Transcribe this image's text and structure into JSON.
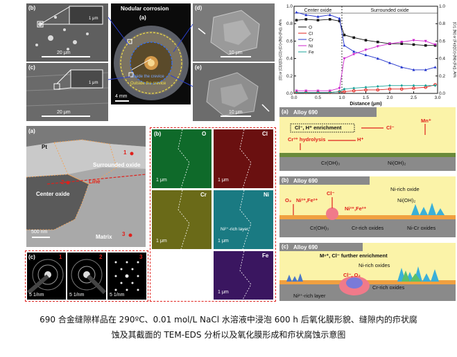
{
  "top_row": {
    "b_label": "(b)",
    "b_scale": "20 μm",
    "b_inset_scale": "1 μm",
    "c_label": "(c)",
    "c_scale": "20 μm",
    "c_inset_scale": "1 μm",
    "a_label": "(a)",
    "a_title": "Nodular corrosion",
    "a_inside": "Inside the crevice",
    "a_outside": "Outside the crevice",
    "a_scale": "4 mm",
    "d_label": "(d)",
    "d_scale": "10 μm",
    "e_label": "(e)",
    "e_scale": "10 μm"
  },
  "profile_chart": {
    "region_left": "Center oxide",
    "region_right": "Surrounded oxide",
    "xlabel": "Distance (μm)",
    "ylabel_left": "[O] or [Cl]/([O]+[Cl]+[Cr]+[Ni]+[Fe]), At%",
    "ylabel_right": "[Cr], [Ni] or [Fe]/([Cr]+[Ni]+[Fe]), At%",
    "x_ticks": [
      "0.0",
      "0.5",
      "1.0",
      "1.5",
      "2.0",
      "2.5",
      "3.0"
    ],
    "y_ticks_left": [
      "0.0",
      "0.2",
      "0.4",
      "0.6",
      "0.8",
      "1.0"
    ],
    "y_ticks_right": [
      "0.0",
      "0.2",
      "0.4",
      "0.6",
      "0.8",
      "1.0"
    ],
    "legend": [
      "O",
      "Cl",
      "Cr",
      "Ni",
      "Fe"
    ],
    "colors": {
      "O": "#111111",
      "Cl": "#e0201b",
      "Cr": "#2233cc",
      "Ni": "#cc22cc",
      "Fe": "#1aa39a"
    }
  },
  "chart_data": {
    "type": "line",
    "xlabel": "Distance (μm)",
    "ylabel": "[O] or [Cl]/([O]+[Cl]+[Cr]+[Ni]+[Fe]), At%",
    "xlim": [
      0,
      3
    ],
    "ylim": [
      0,
      1
    ],
    "x": [
      0.05,
      0.25,
      0.5,
      0.75,
      0.95,
      1.05,
      1.25,
      1.5,
      1.75,
      2.0,
      2.25,
      2.5,
      2.75,
      2.95
    ],
    "series": [
      {
        "name": "O",
        "values": [
          0.84,
          0.85,
          0.84,
          0.85,
          0.83,
          0.67,
          0.64,
          0.61,
          0.59,
          0.57,
          0.57,
          0.56,
          0.55,
          0.55
        ]
      },
      {
        "name": "Cl",
        "values": [
          0.01,
          0.01,
          0.01,
          0.01,
          0.02,
          0.02,
          0.03,
          0.04,
          0.04,
          0.05,
          0.05,
          0.06,
          0.07,
          0.1
        ]
      },
      {
        "name": "Cr",
        "values": [
          0.93,
          0.9,
          0.88,
          0.9,
          0.86,
          0.55,
          0.48,
          0.44,
          0.4,
          0.35,
          0.3,
          0.27,
          0.27,
          0.3
        ]
      },
      {
        "name": "Ni",
        "values": [
          0.03,
          0.03,
          0.03,
          0.03,
          0.06,
          0.4,
          0.45,
          0.5,
          0.54,
          0.57,
          0.59,
          0.61,
          0.6,
          0.56
        ]
      },
      {
        "name": "Fe",
        "values": [
          0.01,
          0.01,
          0.01,
          0.01,
          0.02,
          0.05,
          0.06,
          0.07,
          0.08,
          0.09,
          0.09,
          0.09,
          0.09,
          0.09
        ]
      }
    ]
  },
  "tem": {
    "a_label": "(a)",
    "pt": "Pt",
    "surrounded": "Surrounded oxide",
    "line": "Line",
    "center": "Center oxide",
    "matrix": "Matrix",
    "scale": "500 nm",
    "m1": "1",
    "m2": "2",
    "m3": "3"
  },
  "eds": {
    "b_label": "(b)",
    "O": "O",
    "Cl": "Cl",
    "Cr": "Cr",
    "Ni": "Ni",
    "Fe": "Fe",
    "ni_layer": "Ni²⁺-rich layer",
    "scale": "1 μm",
    "colors": {
      "O": "#0f6a2a",
      "Cl": "#6a1010",
      "Cr": "#6a6a18",
      "Ni": "#1a7a82",
      "Fe": "#3a1660"
    }
  },
  "saed": {
    "c_label": "(c)",
    "n1": "1",
    "n2": "2",
    "n3": "3",
    "scale": "5 1/nm"
  },
  "schematic": {
    "a_label": "(a)",
    "b_label": "(b)",
    "c_label": "(c)",
    "alloy": "Alloy 690",
    "a_enrich": "Cl⁻, H⁺ enrichment",
    "a_cl": "Cl⁻",
    "a_mn": "Mn⁺",
    "a_hydro": "Cr³⁺ hydrolysis",
    "a_h": "H⁺",
    "a_croh": "Cr(OH)₃",
    "a_nioh": "Ni(OH)₂",
    "b_ni_oxide": "Ni-rich oxide",
    "b_nioh": "Ni(OH)₂",
    "b_o2": "O₂",
    "b_nife1": "Ni²⁺,Fe²⁺",
    "b_cl": "Cl⁻",
    "b_nife2": "Ni²⁺,Fe²⁺",
    "b_croh": "Cr(OH)₃",
    "b_cr_oxides": "Cr-rich oxides",
    "b_nicr": "Ni-Cr oxides",
    "c_mn": "Mⁿ⁺, Cl⁻ further enrichment",
    "c_ni_oxides": "Ni-rich oxides",
    "c_clo2": "Cl⁻, O₂",
    "c_cr_oxides": "Cr-rich oxides",
    "c_layer": "Ni²⁺-rich layer"
  },
  "caption": {
    "line1": "690 合金缝隙样品在 290ºC、0.01 mol/L NaCl 水溶液中浸泡 600 h 后氧化膜形貌、缝隙内的疖状腐",
    "line2": "蚀及其截面的 TEM-EDS 分析以及氧化膜形成和疖状腐蚀示意图"
  }
}
